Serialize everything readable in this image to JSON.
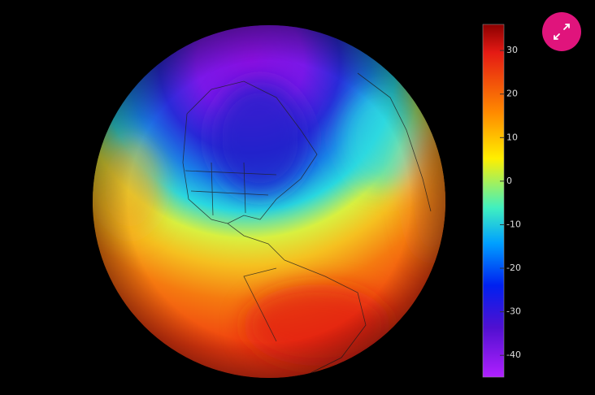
{
  "colorbar": {
    "range": [
      -45,
      36
    ],
    "ticks": [
      30,
      20,
      10,
      0,
      -10,
      -20,
      -30,
      -40
    ]
  }
}
